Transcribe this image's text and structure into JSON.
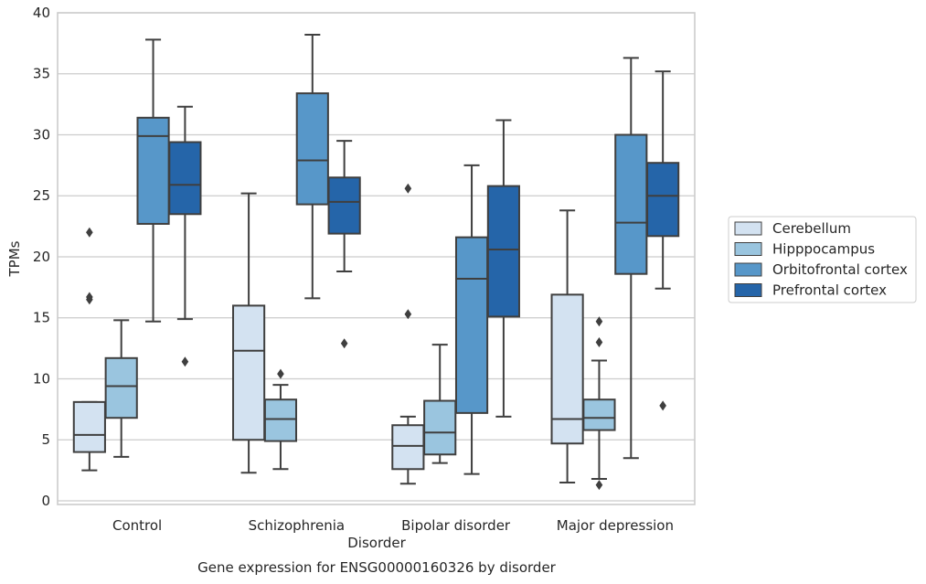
{
  "chart_data": {
    "type": "box",
    "title": "Gene expression for ENSG00000160326 by disorder",
    "xlabel": "Disorder",
    "ylabel": "TPMs",
    "ylim": [
      -0.3,
      40
    ],
    "yticks": [
      0,
      5,
      10,
      15,
      20,
      25,
      30,
      35,
      40
    ],
    "grid": "horizontal",
    "legend_position": "right",
    "categories": [
      "Control",
      "Schizophrenia",
      "Bipolar disorder",
      "Major depression"
    ],
    "series": [
      {
        "name": "Cerebellum",
        "color": "#d3e2f1",
        "boxes": [
          {
            "whislo": 2.5,
            "q1": 4.0,
            "med": 5.4,
            "q3": 8.1,
            "whishi": 8.1,
            "fliers": [
              16.5,
              16.7,
              22.0
            ]
          },
          {
            "whislo": 2.3,
            "q1": 5.0,
            "med": 12.3,
            "q3": 16.0,
            "whishi": 25.2,
            "fliers": []
          },
          {
            "whislo": 1.4,
            "q1": 2.6,
            "med": 4.5,
            "q3": 6.2,
            "whishi": 6.9,
            "fliers": [
              15.3,
              25.6
            ]
          },
          {
            "whislo": 1.5,
            "q1": 4.7,
            "med": 6.7,
            "q3": 16.9,
            "whishi": 23.8,
            "fliers": []
          }
        ]
      },
      {
        "name": "Hipppocampus",
        "color": "#9ac5df",
        "boxes": [
          {
            "whislo": 3.6,
            "q1": 6.8,
            "med": 9.4,
            "q3": 11.7,
            "whishi": 14.8,
            "fliers": []
          },
          {
            "whislo": 2.6,
            "q1": 4.9,
            "med": 6.7,
            "q3": 8.3,
            "whishi": 9.5,
            "fliers": [
              10.4
            ]
          },
          {
            "whislo": 3.1,
            "q1": 3.8,
            "med": 5.6,
            "q3": 8.2,
            "whishi": 12.8,
            "fliers": []
          },
          {
            "whislo": 1.8,
            "q1": 5.8,
            "med": 6.8,
            "q3": 8.3,
            "whishi": 11.5,
            "fliers": [
              1.3,
              13.0,
              14.7
            ]
          }
        ]
      },
      {
        "name": "Orbitofrontal cortex",
        "color": "#5797c9",
        "boxes": [
          {
            "whislo": 14.7,
            "q1": 22.7,
            "med": 29.9,
            "q3": 31.4,
            "whishi": 37.8,
            "fliers": []
          },
          {
            "whislo": 16.6,
            "q1": 24.3,
            "med": 27.9,
            "q3": 33.4,
            "whishi": 38.2,
            "fliers": []
          },
          {
            "whislo": 2.2,
            "q1": 7.2,
            "med": 18.2,
            "q3": 21.6,
            "whishi": 27.5,
            "fliers": []
          },
          {
            "whislo": 3.5,
            "q1": 18.6,
            "med": 22.8,
            "q3": 30.0,
            "whishi": 36.3,
            "fliers": []
          }
        ]
      },
      {
        "name": "Prefrontal cortex",
        "color": "#2565a9",
        "boxes": [
          {
            "whislo": 14.9,
            "q1": 23.5,
            "med": 25.9,
            "q3": 29.4,
            "whishi": 32.3,
            "fliers": [
              11.4
            ]
          },
          {
            "whislo": 18.8,
            "q1": 21.9,
            "med": 24.5,
            "q3": 26.5,
            "whishi": 29.5,
            "fliers": [
              12.9
            ]
          },
          {
            "whislo": 6.9,
            "q1": 15.1,
            "med": 20.6,
            "q3": 25.8,
            "whishi": 31.2,
            "fliers": []
          },
          {
            "whislo": 17.4,
            "q1": 21.7,
            "med": 25.0,
            "q3": 27.7,
            "whishi": 35.2,
            "fliers": [
              7.8
            ]
          }
        ]
      }
    ]
  }
}
